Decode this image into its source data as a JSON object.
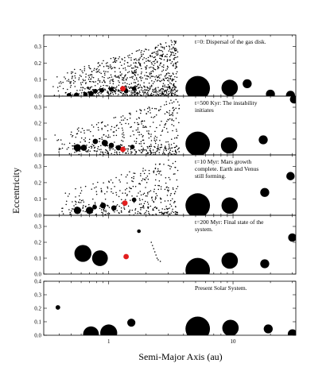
{
  "figure": {
    "xlabel": "Semi-Major Axis (au)",
    "ylabel": "Eccentricity"
  },
  "chart_data": [
    {
      "type": "scatter",
      "panel": "t=0",
      "annotation": [
        "t=0: Dispersal of the gas disk."
      ],
      "xscale": "log",
      "xlim": [
        0.3,
        32
      ],
      "ylim": [
        0,
        0.37
      ],
      "yticks": [
        0.0,
        0.1,
        0.2,
        0.3
      ],
      "big_bodies": [
        {
          "a": 0.48,
          "e": 0.005,
          "mass": 2
        },
        {
          "a": 0.55,
          "e": 0.005,
          "mass": 3
        },
        {
          "a": 0.65,
          "e": 0.01,
          "mass": 2
        },
        {
          "a": 0.72,
          "e": 0.015,
          "mass": 3
        },
        {
          "a": 0.78,
          "e": 0.03,
          "mass": 2
        },
        {
          "a": 0.88,
          "e": 0.035,
          "mass": 2
        },
        {
          "a": 1.05,
          "e": 0.04,
          "mass": 2
        },
        {
          "a": 1.38,
          "e": 0.03,
          "mass": 2
        },
        {
          "a": 1.6,
          "e": 0.045,
          "mass": 2
        },
        {
          "a": 5.2,
          "e": 0.048,
          "mass": 300
        },
        {
          "a": 9.4,
          "e": 0.05,
          "mass": 90
        },
        {
          "a": 13.0,
          "e": 0.075,
          "mass": 15
        },
        {
          "a": 20.0,
          "e": 0.012,
          "mass": 15
        },
        {
          "a": 29.0,
          "e": 0.005,
          "mass": 15
        }
      ],
      "highlight": [
        {
          "a": 1.3,
          "e": 0.045,
          "color": "#e21d1d"
        }
      ],
      "planetesimals": {
        "count": 900,
        "a_range": [
          0.35,
          3.6
        ],
        "e_max": 0.35
      }
    },
    {
      "type": "scatter",
      "panel": "t=500 Kyr",
      "annotation": [
        "t=500 Kyr: The instability",
        "initiates"
      ],
      "xscale": "log",
      "xlim": [
        0.3,
        32
      ],
      "ylim": [
        0,
        0.37
      ],
      "yticks": [
        0.0,
        0.1,
        0.2,
        0.3
      ],
      "big_bodies": [
        {
          "a": 0.56,
          "e": 0.045,
          "mass": 8
        },
        {
          "a": 0.63,
          "e": 0.045,
          "mass": 5
        },
        {
          "a": 0.78,
          "e": 0.085,
          "mass": 3
        },
        {
          "a": 0.93,
          "e": 0.075,
          "mass": 5
        },
        {
          "a": 1.05,
          "e": 0.06,
          "mass": 3
        },
        {
          "a": 1.2,
          "e": 0.045,
          "mass": 3
        },
        {
          "a": 1.55,
          "e": 0.05,
          "mass": 2
        },
        {
          "a": 5.2,
          "e": 0.07,
          "mass": 300
        },
        {
          "a": 9.3,
          "e": 0.06,
          "mass": 90
        },
        {
          "a": 17.5,
          "e": 0.095,
          "mass": 15
        },
        {
          "a": 31.0,
          "e": 0.35,
          "mass": 12
        }
      ],
      "highlight": [
        {
          "a": 1.3,
          "e": 0.035,
          "color": "#e21d1d"
        }
      ],
      "planetesimals": {
        "count": 480,
        "a_range": [
          0.35,
          3.7
        ],
        "e_max": 0.36
      }
    },
    {
      "type": "scatter",
      "panel": "t=10 Myr",
      "annotation": [
        "t=10 Myr: Mars growth",
        "complete. Earth and Venus",
        "still forming."
      ],
      "xscale": "log",
      "xlim": [
        0.3,
        32
      ],
      "ylim": [
        0,
        0.37
      ],
      "yticks": [
        0.0,
        0.1,
        0.2,
        0.3
      ],
      "big_bodies": [
        {
          "a": 0.56,
          "e": 0.03,
          "mass": 8
        },
        {
          "a": 0.7,
          "e": 0.03,
          "mass": 8
        },
        {
          "a": 0.77,
          "e": 0.05,
          "mass": 2
        },
        {
          "a": 0.9,
          "e": 0.06,
          "mass": 4
        },
        {
          "a": 1.1,
          "e": 0.045,
          "mass": 3
        },
        {
          "a": 1.6,
          "e": 0.095,
          "mass": 2
        },
        {
          "a": 5.2,
          "e": 0.06,
          "mass": 300
        },
        {
          "a": 9.4,
          "e": 0.06,
          "mass": 90
        },
        {
          "a": 18.0,
          "e": 0.14,
          "mass": 15
        },
        {
          "a": 29.0,
          "e": 0.24,
          "mass": 12
        }
      ],
      "highlight": [
        {
          "a": 1.35,
          "e": 0.075,
          "color": "#e21d1d"
        }
      ],
      "planetesimals": {
        "count": 380,
        "a_range": [
          0.38,
          3.6
        ],
        "e_max": 0.36
      }
    },
    {
      "type": "scatter",
      "panel": "t=200 Myr",
      "annotation": [
        "t=200 Myr: Final state of the",
        "system."
      ],
      "xscale": "log",
      "xlim": [
        0.3,
        32
      ],
      "ylim": [
        0,
        0.37
      ],
      "yticks": [
        0.0,
        0.1,
        0.2,
        0.3
      ],
      "big_bodies": [
        {
          "a": 0.62,
          "e": 0.13,
          "mass": 100
        },
        {
          "a": 0.85,
          "e": 0.1,
          "mass": 80
        },
        {
          "a": 1.75,
          "e": 0.27,
          "mass": 1
        },
        {
          "a": 5.2,
          "e": 0.025,
          "mass": 300
        },
        {
          "a": 9.4,
          "e": 0.085,
          "mass": 90
        },
        {
          "a": 18.0,
          "e": 0.065,
          "mass": 15
        },
        {
          "a": 30.0,
          "e": 0.23,
          "mass": 12
        }
      ],
      "highlight": [
        {
          "a": 1.38,
          "e": 0.11,
          "color": "#e21d1d"
        }
      ],
      "small_points": [
        [
          2.2,
          0.2
        ],
        [
          2.25,
          0.18
        ],
        [
          2.3,
          0.16
        ],
        [
          2.35,
          0.14
        ],
        [
          2.4,
          0.12
        ],
        [
          2.45,
          0.1
        ],
        [
          2.5,
          0.09
        ],
        [
          2.6,
          0.08
        ]
      ]
    },
    {
      "type": "scatter",
      "panel": "present",
      "annotation": [
        "Present Solar System."
      ],
      "xscale": "log",
      "xlim": [
        0.3,
        32
      ],
      "ylim": [
        0,
        0.4
      ],
      "yticks": [
        0.0,
        0.1,
        0.2,
        0.3,
        0.4
      ],
      "big_bodies": [
        {
          "a": 0.39,
          "e": 0.206,
          "mass": 2
        },
        {
          "a": 0.72,
          "e": 0.007,
          "mass": 80
        },
        {
          "a": 1.0,
          "e": 0.017,
          "mass": 100
        },
        {
          "a": 1.52,
          "e": 0.093,
          "mass": 11
        },
        {
          "a": 5.2,
          "e": 0.048,
          "mass": 300
        },
        {
          "a": 9.54,
          "e": 0.054,
          "mass": 90
        },
        {
          "a": 19.2,
          "e": 0.047,
          "mass": 15
        },
        {
          "a": 30.1,
          "e": 0.009,
          "mass": 17
        }
      ]
    }
  ],
  "colors": {
    "points": "#000000",
    "highlight": "#e21d1d",
    "frame": "#000000"
  }
}
